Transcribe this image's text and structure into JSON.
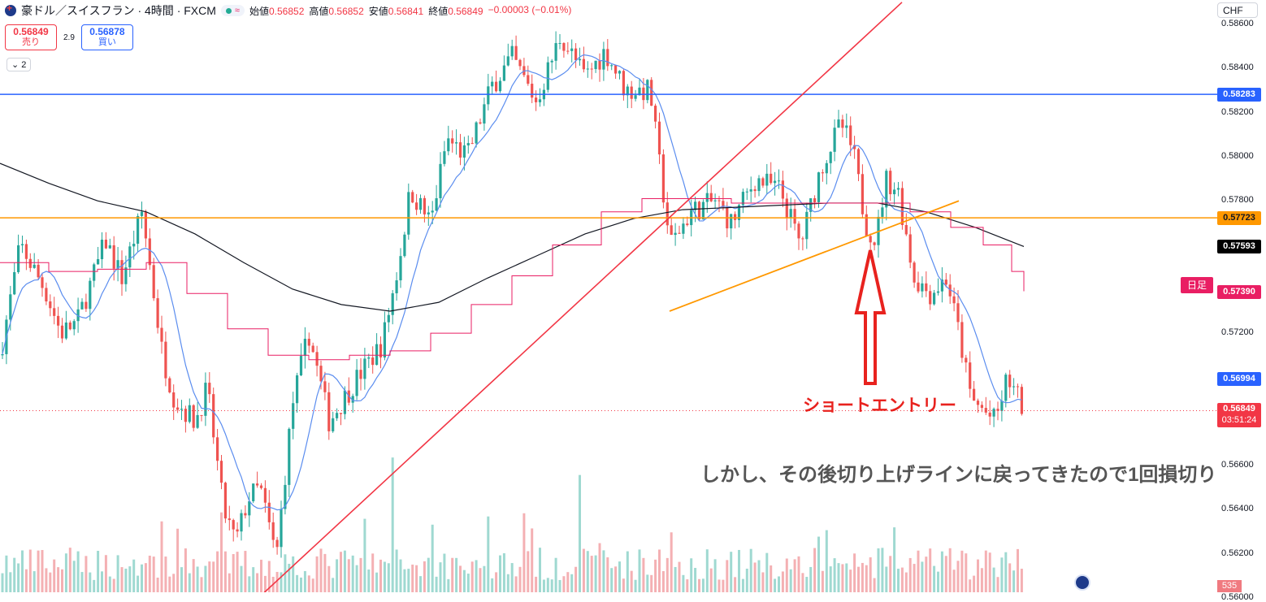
{
  "header": {
    "symbol": "豪ドル／スイスフラン · 4時間 · FXCM",
    "live_icon": "≈",
    "open_label": "始値",
    "open_value": "0.56852",
    "high_label": "高値",
    "high_value": "0.56852",
    "low_label": "安値",
    "low_value": "0.56841",
    "close_label": "終値",
    "close_value": "0.56849",
    "change": "−0.00003 (−0.01%)"
  },
  "trade": {
    "sell_price": "0.56849",
    "sell_label": "売り",
    "spread": "2.9",
    "buy_price": "0.56878",
    "buy_label": "買い"
  },
  "collapse": {
    "label": "⌄ 2"
  },
  "currency": "CHF",
  "axis": {
    "ticks": [
      "0.58600",
      "0.58400",
      "0.58200",
      "0.58000",
      "0.57800",
      "0.57200",
      "0.56600",
      "0.56400",
      "0.56200",
      "0.56000"
    ]
  },
  "tags": {
    "hline_blue": "0.58283",
    "hline_orange": "0.57723",
    "ma200": "0.57593",
    "daily_label": "日足",
    "daily": "0.57390",
    "ma20": "0.56994",
    "last": "0.56849",
    "countdown": "03:51:24",
    "volume": "535"
  },
  "annotations": {
    "entry": "ショートエントリー",
    "note": "しかし、その後切り上げラインに戻ってきたので1回損切り"
  },
  "colors": {
    "up": "#26a69a",
    "down": "#ef5350",
    "blue_line": "#2962ff",
    "orange_line": "#ff9800",
    "trend_red": "#f23645",
    "ma200": "#131722",
    "ma20": "#5b8def",
    "daily_line": "#e91e63"
  },
  "chart_data": {
    "type": "candlestick",
    "timeframe": "4時間",
    "ylim": [
      0.56,
      0.586
    ],
    "ticks": [
      0.56,
      0.562,
      0.564,
      0.566,
      0.572,
      0.578,
      0.58,
      0.582,
      0.584,
      0.586
    ],
    "last_price": 0.56849,
    "horizontal_lines": [
      0.58283,
      0.57723
    ],
    "ma200_last": 0.57593,
    "ma20_last": 0.56994,
    "daily_last": 0.5739,
    "anchors": [
      [
        0,
        0.571
      ],
      [
        25,
        0.576
      ],
      [
        55,
        0.574
      ],
      [
        75,
        0.572
      ],
      [
        95,
        0.5725
      ],
      [
        130,
        0.5762
      ],
      [
        150,
        0.5745
      ],
      [
        175,
        0.5775
      ],
      [
        200,
        0.571
      ],
      [
        215,
        0.569
      ],
      [
        240,
        0.568
      ],
      [
        255,
        0.5695
      ],
      [
        275,
        0.564
      ],
      [
        290,
        0.5625
      ],
      [
        305,
        0.5645
      ],
      [
        320,
        0.565
      ],
      [
        340,
        0.5618
      ],
      [
        360,
        0.5688
      ],
      [
        380,
        0.572
      ],
      [
        405,
        0.568
      ],
      [
        440,
        0.57
      ],
      [
        470,
        0.5715
      ],
      [
        490,
        0.575
      ],
      [
        505,
        0.5785
      ],
      [
        530,
        0.577
      ],
      [
        550,
        0.5808
      ],
      [
        575,
        0.58
      ],
      [
        605,
        0.5832
      ],
      [
        630,
        0.5845
      ],
      [
        660,
        0.5825
      ],
      [
        690,
        0.5855
      ],
      [
        720,
        0.5836
      ],
      [
        745,
        0.5848
      ],
      [
        770,
        0.583
      ],
      [
        800,
        0.583
      ],
      [
        812,
        0.5795
      ],
      [
        825,
        0.576
      ],
      [
        850,
        0.5775
      ],
      [
        880,
        0.578
      ],
      [
        900,
        0.577
      ],
      [
        930,
        0.579
      ],
      [
        960,
        0.5785
      ],
      [
        985,
        0.576
      ],
      [
        1010,
        0.5795
      ],
      [
        1035,
        0.5815
      ],
      [
        1050,
        0.5802
      ],
      [
        1065,
        0.577
      ],
      [
        1078,
        0.5762
      ],
      [
        1090,
        0.579
      ],
      [
        1105,
        0.5785
      ],
      [
        1125,
        0.5745
      ],
      [
        1145,
        0.5738
      ],
      [
        1165,
        0.5745
      ],
      [
        1180,
        0.572
      ],
      [
        1195,
        0.569
      ],
      [
        1210,
        0.5685
      ],
      [
        1225,
        0.568
      ],
      [
        1240,
        0.57
      ],
      [
        1260,
        0.5685
      ]
    ],
    "ma200": [
      [
        0,
        0.5797
      ],
      [
        60,
        0.5788
      ],
      [
        120,
        0.578
      ],
      [
        180,
        0.5775
      ],
      [
        240,
        0.5765
      ],
      [
        300,
        0.5752
      ],
      [
        360,
        0.574
      ],
      [
        420,
        0.5733
      ],
      [
        480,
        0.573
      ],
      [
        540,
        0.5734
      ],
      [
        600,
        0.5745
      ],
      [
        660,
        0.5755
      ],
      [
        720,
        0.5765
      ],
      [
        780,
        0.5772
      ],
      [
        840,
        0.5776
      ],
      [
        900,
        0.5777
      ],
      [
        960,
        0.5778
      ],
      [
        1020,
        0.5779
      ],
      [
        1080,
        0.5779
      ],
      [
        1140,
        0.5775
      ],
      [
        1200,
        0.5768
      ],
      [
        1260,
        0.57593
      ]
    ],
    "daily_step": [
      [
        0,
        0.5752
      ],
      [
        60,
        0.5748
      ],
      [
        120,
        0.5749
      ],
      [
        180,
        0.5752
      ],
      [
        230,
        0.5738
      ],
      [
        280,
        0.5722
      ],
      [
        330,
        0.571
      ],
      [
        380,
        0.5708
      ],
      [
        430,
        0.571
      ],
      [
        480,
        0.5712
      ],
      [
        530,
        0.572
      ],
      [
        580,
        0.5733
      ],
      [
        630,
        0.5746
      ],
      [
        680,
        0.576
      ],
      [
        740,
        0.5775
      ],
      [
        790,
        0.5781
      ],
      [
        840,
        0.5781
      ],
      [
        900,
        0.5779
      ],
      [
        960,
        0.5779
      ],
      [
        1020,
        0.5779
      ],
      [
        1080,
        0.5779
      ],
      [
        1120,
        0.5775
      ],
      [
        1170,
        0.5768
      ],
      [
        1210,
        0.576
      ],
      [
        1245,
        0.5748
      ],
      [
        1260,
        0.5739
      ]
    ],
    "trendlines": [
      {
        "name": "red-uptrend",
        "from": [
          318,
          0.56
        ],
        "to": [
          1110,
          0.587
        ]
      },
      {
        "name": "orange-support",
        "from": [
          824,
          0.573
        ],
        "to": [
          1180,
          0.578
        ]
      }
    ]
  }
}
